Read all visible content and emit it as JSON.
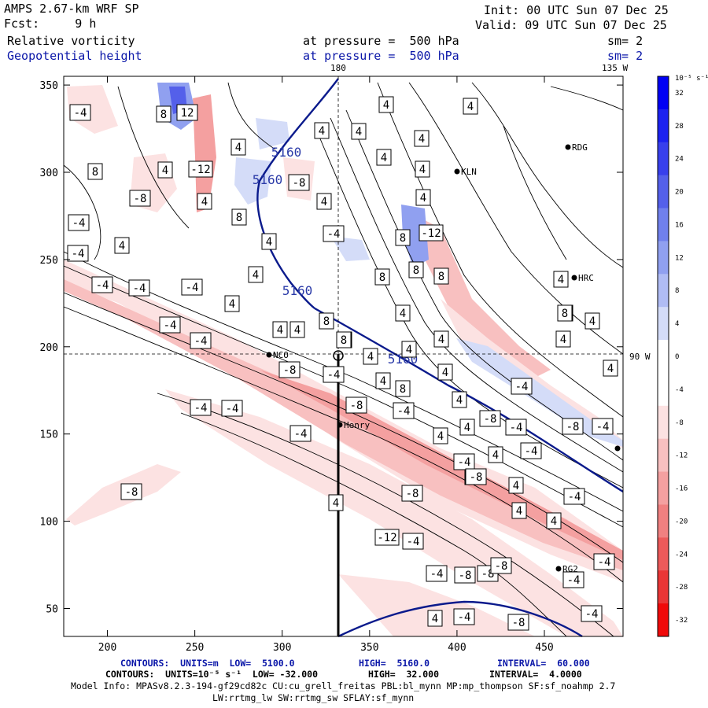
{
  "header": {
    "title": "AMPS 2.67-km WRF SP",
    "forecast": "Fcst:     9 h",
    "init": "Init: 00 UTC Sun 07 Dec 25",
    "valid": "Valid: 09 UTC Sun 07 Dec 25",
    "field1_name": "Relative vorticity",
    "field1_level": "at pressure =  500 hPa",
    "field1_smooth": "sm= 2",
    "field2_name": "Geopotential height",
    "field2_level": "at pressure =  500 hPa",
    "field2_smooth": "sm= 2"
  },
  "map_labels": {
    "top_lon_180": "180",
    "top_lon_135": "135 W",
    "right_lat_90": "90 W"
  },
  "stations": [
    {
      "name": "RDG"
    },
    {
      "name": "KLN"
    },
    {
      "name": "HRC"
    },
    {
      "name": "NCO"
    },
    {
      "name": "Henry"
    },
    {
      "name": "RG2"
    }
  ],
  "axes": {
    "x_ticks": [
      "200",
      "250",
      "300",
      "350",
      "400",
      "450"
    ],
    "y_ticks": [
      "350",
      "300",
      "250",
      "200",
      "150",
      "100",
      "50"
    ]
  },
  "height_contour_labels": [
    "5160",
    "5160",
    "5160",
    "5160"
  ],
  "vorticity_contour_labels": [
    "-4",
    "8",
    "12",
    "4",
    "4",
    "4",
    "4",
    "4",
    "4",
    "4",
    "4",
    "8",
    "4",
    "4",
    "4",
    "4",
    "-4",
    "-12",
    "8",
    "-4",
    "-8",
    "4",
    "8",
    "-8",
    "4",
    "4",
    "-4",
    "4",
    "-4",
    "4",
    "-12",
    "4",
    "4",
    "-4",
    "4",
    "8",
    "8",
    "4",
    "-4",
    "-4",
    "4",
    "4",
    "8",
    "8",
    "4",
    "8",
    "4",
    "4",
    "-4",
    "4",
    "-4",
    "8",
    "8",
    "4",
    "4",
    "4",
    "4",
    "-8",
    "-4",
    "-8",
    "-4",
    "-4",
    "4",
    "-8",
    "8",
    "4",
    "-4",
    "-4",
    "-4",
    "4",
    "4",
    "4",
    "-4",
    "-4",
    "-4",
    "-8",
    "4",
    "-4",
    "4",
    "-4",
    "-8",
    "-8",
    "4",
    "-12",
    "-4",
    "-8",
    "-8",
    "-4",
    "-8",
    "-8",
    "4",
    "-4",
    "-4",
    "-4",
    "-8",
    "-8"
  ],
  "colorbar": {
    "title": "10⁻⁵ s⁻¹",
    "labels": [
      "32",
      "28",
      "24",
      "20",
      "16",
      "12",
      "8",
      "4",
      "0",
      "-4",
      "-8",
      "-12",
      "-16",
      "-20",
      "-24",
      "-28",
      "-32"
    ],
    "colors": [
      "#0000f4",
      "#1c22f0",
      "#3840ec",
      "#5460ea",
      "#7080ec",
      "#90a0f0",
      "#b0bcf4",
      "#d4dcf8",
      "#ffffff",
      "#ffffff",
      "#fce2e2",
      "#f8c0c0",
      "#f4a0a0",
      "#f08080",
      "#ec5a5a",
      "#ea3636",
      "#f00a0a"
    ]
  },
  "footer": {
    "line1_a": "CONTOURS:  UNITS=m  LOW=  5100.0",
    "line1_b": "HIGH=  5160.0",
    "line1_c": "INTERVAL=  60.000",
    "line2_a": "CONTOURS:  UNITS=10⁻⁵ s⁻¹  LOW= -32.000",
    "line2_b": "HIGH=  32.000",
    "line2_c": "INTERVAL=  4.0000",
    "line3": "Model Info: MPASv8.2.3-194-gf29cd82c CU:cu_grell_freitas PBL:bl_mynn MP:mp_thompson SF:sf_noahmp 2.7",
    "line4": "LW:rrtmg_lw SW:rrtmg_sw SFLAY:sf_mynn"
  }
}
